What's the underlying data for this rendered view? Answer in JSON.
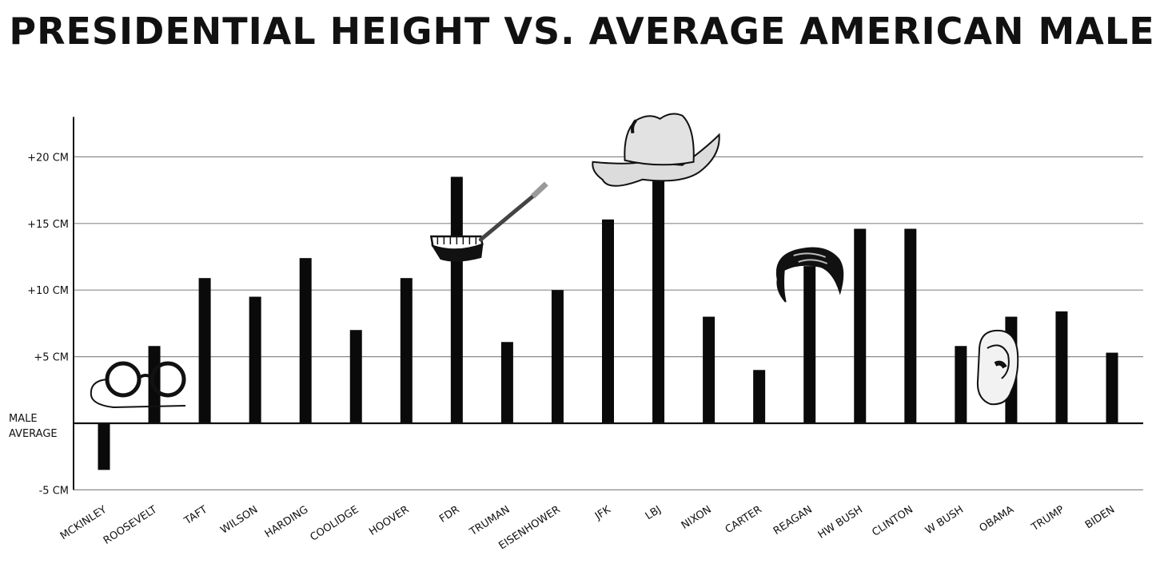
{
  "chart_data": {
    "type": "bar",
    "title": "PRESIDENTIAL HEIGHT VS. AVERAGE AMERICAN MALE",
    "baseline_label_line1": "MALE",
    "baseline_label_line2": "AVERAGE",
    "y_ticks": [
      {
        "value": 20,
        "label": "+20 CM"
      },
      {
        "value": 15,
        "label": "+15 CM"
      },
      {
        "value": 10,
        "label": "+10 CM"
      },
      {
        "value": 5,
        "label": "+5 CM"
      },
      {
        "value": -5,
        "label": "-5 CM"
      }
    ],
    "ylim": [
      -5,
      23
    ],
    "grid": true,
    "categories": [
      "MCKINLEY",
      "ROOSEVELT",
      "TAFT",
      "WILSON",
      "HARDING",
      "COOLIDGE",
      "HOOVER",
      "FDR",
      "TRUMAN",
      "EISENHOWER",
      "JFK",
      "LBJ",
      "NIXON",
      "CARTER",
      "REAGAN",
      "HW BUSH",
      "CLINTON",
      "W BUSH",
      "OBAMA",
      "TRUMP",
      "BIDEN"
    ],
    "values": [
      -3.5,
      5.8,
      10.9,
      9.5,
      12.4,
      7.0,
      10.9,
      18.5,
      6.1,
      10.0,
      15.3,
      18.3,
      8.0,
      4.0,
      11.8,
      14.6,
      14.6,
      5.8,
      8.0,
      8.4,
      5.3
    ],
    "decorations": [
      {
        "president": "MCKINLEY",
        "icon": "pince-nez-glasses-icon"
      },
      {
        "president": "FDR",
        "icon": "cigarette-holder-smile-icon"
      },
      {
        "president": "LBJ",
        "icon": "cowboy-hat-icon"
      },
      {
        "president": "REAGAN",
        "icon": "pompadour-hair-icon"
      },
      {
        "president": "OBAMA",
        "icon": "ear-icon"
      }
    ]
  }
}
